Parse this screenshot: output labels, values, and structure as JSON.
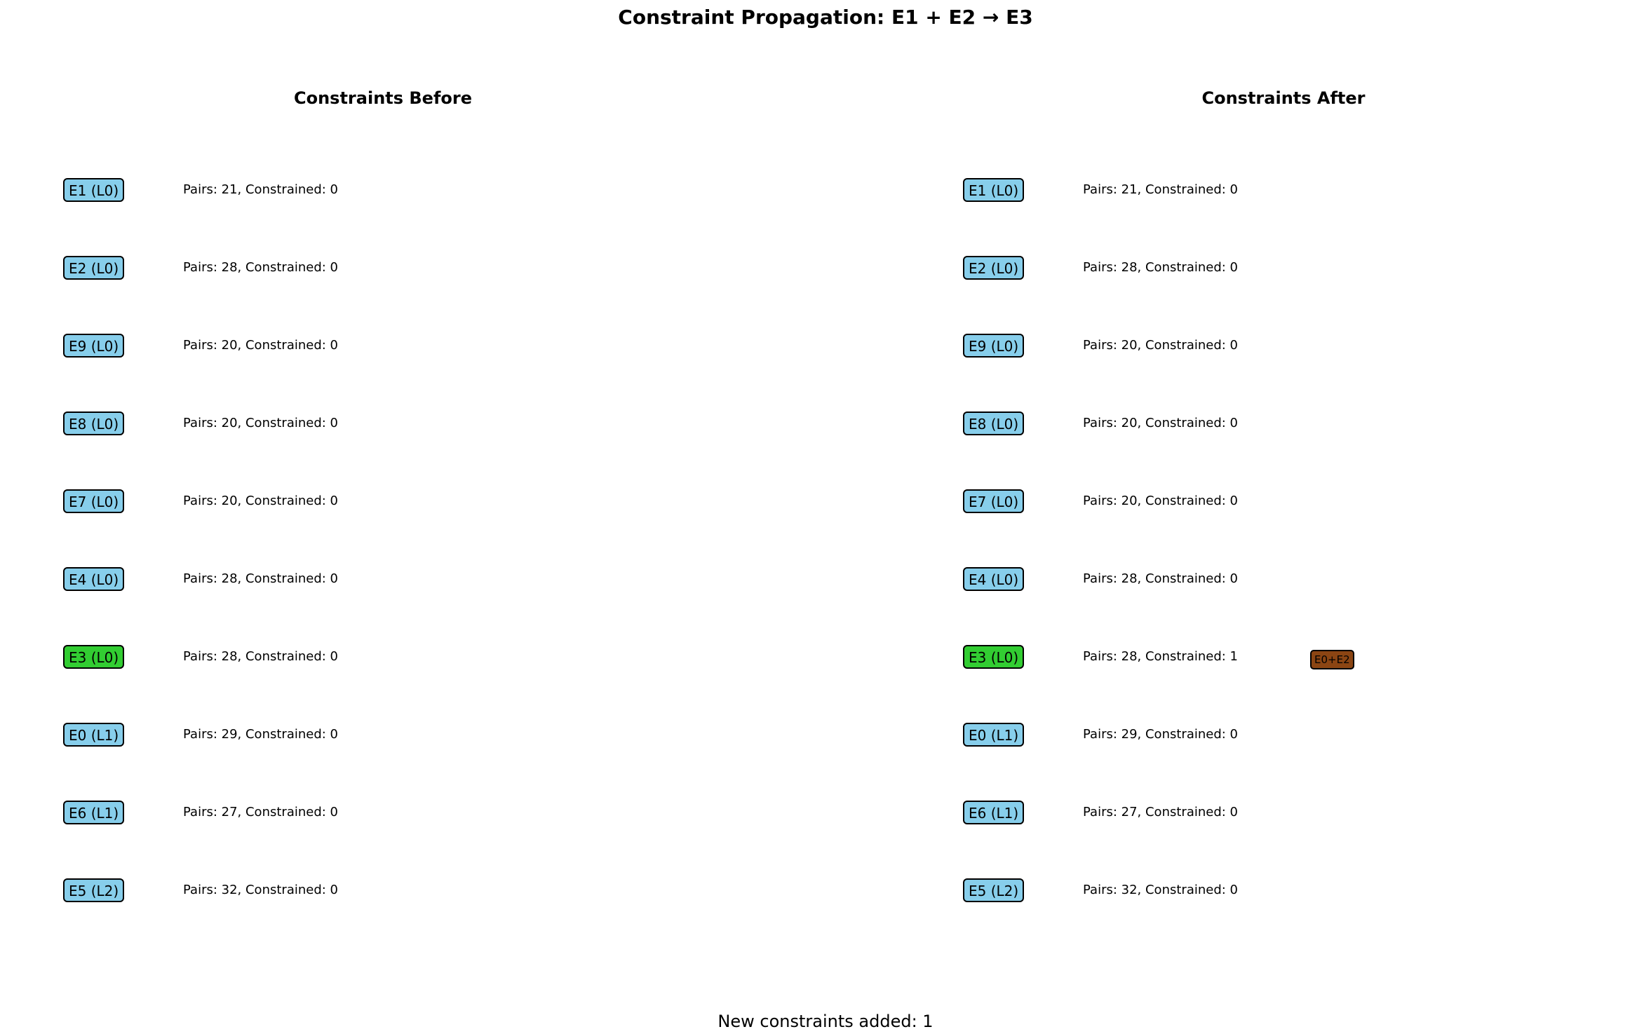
{
  "title": "Constraint Propagation: E1 + E2 → E3",
  "colors": {
    "node_default": "#87ceeb",
    "node_highlight": "#32cd32",
    "new_constraint": "#8b4513"
  },
  "panels": [
    {
      "title": "Constraints Before",
      "rows": [
        {
          "label": "E1 (L0)",
          "info": "Pairs: 21, Constrained: 0",
          "highlight": false
        },
        {
          "label": "E2 (L0)",
          "info": "Pairs: 28, Constrained: 0",
          "highlight": false
        },
        {
          "label": "E9 (L0)",
          "info": "Pairs: 20, Constrained: 0",
          "highlight": false
        },
        {
          "label": "E8 (L0)",
          "info": "Pairs: 20, Constrained: 0",
          "highlight": false
        },
        {
          "label": "E7 (L0)",
          "info": "Pairs: 20, Constrained: 0",
          "highlight": false
        },
        {
          "label": "E4 (L0)",
          "info": "Pairs: 28, Constrained: 0",
          "highlight": false
        },
        {
          "label": "E3 (L0)",
          "info": "Pairs: 28, Constrained: 0",
          "highlight": true
        },
        {
          "label": "E0 (L1)",
          "info": "Pairs: 29, Constrained: 0",
          "highlight": false
        },
        {
          "label": "E6 (L1)",
          "info": "Pairs: 27, Constrained: 0",
          "highlight": false
        },
        {
          "label": "E5 (L2)",
          "info": "Pairs: 32, Constrained: 0",
          "highlight": false
        }
      ]
    },
    {
      "title": "Constraints After",
      "rows": [
        {
          "label": "E1 (L0)",
          "info": "Pairs: 21, Constrained: 0",
          "highlight": false
        },
        {
          "label": "E2 (L0)",
          "info": "Pairs: 28, Constrained: 0",
          "highlight": false
        },
        {
          "label": "E9 (L0)",
          "info": "Pairs: 20, Constrained: 0",
          "highlight": false
        },
        {
          "label": "E8 (L0)",
          "info": "Pairs: 20, Constrained: 0",
          "highlight": false
        },
        {
          "label": "E7 (L0)",
          "info": "Pairs: 20, Constrained: 0",
          "highlight": false
        },
        {
          "label": "E4 (L0)",
          "info": "Pairs: 28, Constrained: 0",
          "highlight": false
        },
        {
          "label": "E3 (L0)",
          "info": "Pairs: 28, Constrained: 1",
          "highlight": true,
          "new_constraint": "E0+E2"
        },
        {
          "label": "E0 (L1)",
          "info": "Pairs: 29, Constrained: 0",
          "highlight": false
        },
        {
          "label": "E6 (L1)",
          "info": "Pairs: 27, Constrained: 0",
          "highlight": false
        },
        {
          "label": "E5 (L2)",
          "info": "Pairs: 32, Constrained: 0",
          "highlight": false
        }
      ]
    }
  ],
  "footer": "New constraints added: 1"
}
